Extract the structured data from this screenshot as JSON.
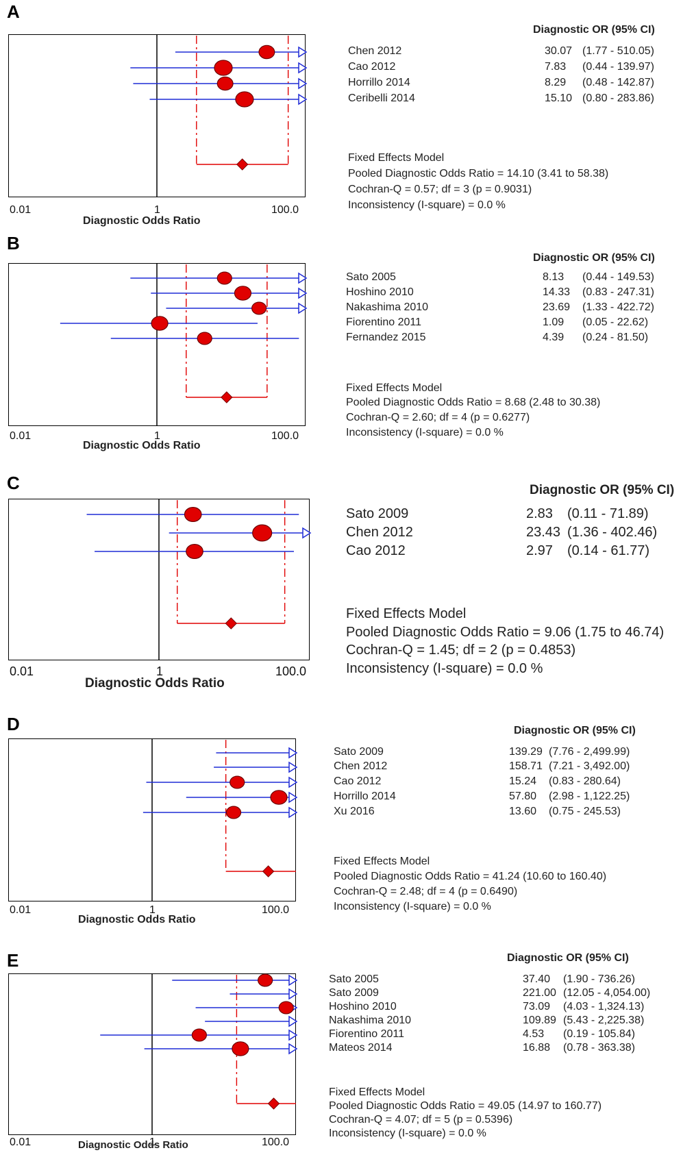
{
  "chart_data": [
    {
      "type": "forest",
      "panel": "A",
      "xlabel": "Diagnostic Odds Ratio",
      "x_scale": "log",
      "xlim": [
        0.01,
        100.0
      ],
      "x_ticks": [
        "0.01",
        "1",
        "100.0"
      ],
      "column_header": "Diagnostic OR (95% CI)",
      "studies": [
        {
          "name": "Chen 2012",
          "or": 30.07,
          "lower": 1.77,
          "upper": 510.05,
          "or_text": "30.07",
          "ci_text": "(1.77 - 510.05)"
        },
        {
          "name": "Cao 2012",
          "or": 7.83,
          "lower": 0.44,
          "upper": 139.97,
          "or_text": "7.83",
          "ci_text": "(0.44 - 139.97)"
        },
        {
          "name": "Horrillo 2014",
          "or": 8.29,
          "lower": 0.48,
          "upper": 142.87,
          "or_text": "8.29",
          "ci_text": "(0.48 - 142.87)"
        },
        {
          "name": "Ceribelli 2014",
          "or": 15.1,
          "lower": 0.8,
          "upper": 283.86,
          "or_text": "15.10",
          "ci_text": "(0.80 - 283.86)"
        }
      ],
      "pooled": {
        "or": 14.1,
        "lower": 3.41,
        "upper": 58.38
      },
      "summary_lines": [
        "Fixed Effects Model",
        "Pooled Diagnostic Odds Ratio = 14.10 (3.41 to 58.38)",
        "Cochran-Q = 0.57; df =  3 (p = 0.9031)",
        "Inconsistency (I-square) = 0.0 %"
      ]
    },
    {
      "type": "forest",
      "panel": "B",
      "xlabel": "Diagnostic Odds Ratio",
      "x_scale": "log",
      "xlim": [
        0.01,
        100.0
      ],
      "x_ticks": [
        "0.01",
        "1",
        "100.0"
      ],
      "column_header": "Diagnostic OR (95% CI)",
      "studies": [
        {
          "name": "Sato 2005",
          "or": 8.13,
          "lower": 0.44,
          "upper": 149.53,
          "or_text": "8.13",
          "ci_text": "(0.44 - 149.53)"
        },
        {
          "name": "Hoshino 2010",
          "or": 14.33,
          "lower": 0.83,
          "upper": 247.31,
          "or_text": "14.33",
          "ci_text": "(0.83 - 247.31)"
        },
        {
          "name": "Nakashima 2010",
          "or": 23.69,
          "lower": 1.33,
          "upper": 422.72,
          "or_text": "23.69",
          "ci_text": "(1.33 - 422.72)"
        },
        {
          "name": "Fiorentino 2011",
          "or": 1.09,
          "lower": 0.05,
          "upper": 22.62,
          "or_text": "1.09",
          "ci_text": "(0.05 - 22.62)"
        },
        {
          "name": "Fernandez 2015",
          "or": 4.39,
          "lower": 0.24,
          "upper": 81.5,
          "or_text": "4.39",
          "ci_text": "(0.24 - 81.50)"
        }
      ],
      "pooled": {
        "or": 8.68,
        "lower": 2.48,
        "upper": 30.38
      },
      "summary_lines": [
        "Fixed Effects Model",
        "Pooled Diagnostic Odds Ratio = 8.68 (2.48 to 30.38)",
        "Cochran-Q = 2.60; df =  4 (p = 0.6277)",
        "Inconsistency (I-square) = 0.0 %"
      ]
    },
    {
      "type": "forest",
      "panel": "C",
      "xlabel": "Diagnostic Odds Ratio",
      "x_scale": "log",
      "xlim": [
        0.01,
        100.0
      ],
      "x_ticks": [
        "0.01",
        "1",
        "100.0"
      ],
      "column_header": "Diagnostic OR (95% CI)",
      "studies": [
        {
          "name": "Sato 2009",
          "or": 2.83,
          "lower": 0.11,
          "upper": 71.89,
          "or_text": "2.83",
          "ci_text": "(0.11 - 71.89)"
        },
        {
          "name": "Chen 2012",
          "or": 23.43,
          "lower": 1.36,
          "upper": 402.46,
          "or_text": "23.43",
          "ci_text": "(1.36 - 402.46)"
        },
        {
          "name": "Cao 2012",
          "or": 2.97,
          "lower": 0.14,
          "upper": 61.77,
          "or_text": "2.97",
          "ci_text": "(0.14 - 61.77)"
        }
      ],
      "pooled": {
        "or": 9.06,
        "lower": 1.75,
        "upper": 46.74
      },
      "summary_lines": [
        "Fixed Effects Model",
        "Pooled Diagnostic Odds Ratio = 9.06 (1.75 to 46.74)",
        "Cochran-Q = 1.45; df =  2 (p = 0.4853)",
        "Inconsistency (I-square) = 0.0 %"
      ]
    },
    {
      "type": "forest",
      "panel": "D",
      "xlabel": "Diagnostic Odds Ratio",
      "x_scale": "log",
      "xlim": [
        0.01,
        100.0
      ],
      "x_ticks": [
        "0.01",
        "1",
        "100.0"
      ],
      "column_header": "Diagnostic OR (95% CI)",
      "studies": [
        {
          "name": "Sato 2009",
          "or": 139.29,
          "lower": 7.76,
          "upper": 2499.99,
          "or_text": "139.29",
          "ci_text": "(7.76 - 2,499.99)"
        },
        {
          "name": "Chen 2012",
          "or": 158.71,
          "lower": 7.21,
          "upper": 3492.0,
          "or_text": "158.71",
          "ci_text": "(7.21 - 3,492.00)"
        },
        {
          "name": "Cao 2012",
          "or": 15.24,
          "lower": 0.83,
          "upper": 280.64,
          "or_text": "15.24",
          "ci_text": "(0.83 - 280.64)"
        },
        {
          "name": "Horrillo 2014",
          "or": 57.8,
          "lower": 2.98,
          "upper": 1122.25,
          "or_text": "57.80",
          "ci_text": "(2.98 - 1,122.25)"
        },
        {
          "name": "Xu 2016",
          "or": 13.6,
          "lower": 0.75,
          "upper": 245.53,
          "or_text": "13.60",
          "ci_text": "(0.75 - 245.53)"
        }
      ],
      "pooled": {
        "or": 41.24,
        "lower": 10.6,
        "upper": 160.4
      },
      "summary_lines": [
        "Fixed Effects Model",
        "Pooled Diagnostic Odds Ratio = 41.24 (10.60 to 160.40)",
        "Cochran-Q = 2.48; df =  4 (p = 0.6490)",
        "Inconsistency (I-square) = 0.0 %"
      ]
    },
    {
      "type": "forest",
      "panel": "E",
      "xlabel": "Diagnostic Odds Ratio",
      "x_scale": "log",
      "xlim": [
        0.01,
        100.0
      ],
      "x_ticks": [
        "0.01",
        "1",
        "100.0"
      ],
      "column_header": "Diagnostic OR (95% CI)",
      "studies": [
        {
          "name": "Sato 2005",
          "or": 37.4,
          "lower": 1.9,
          "upper": 736.26,
          "or_text": "37.40",
          "ci_text": "(1.90 - 736.26)"
        },
        {
          "name": "Sato 2009",
          "or": 221.0,
          "lower": 12.05,
          "upper": 4054.0,
          "or_text": "221.00",
          "ci_text": "(12.05 - 4,054.00)"
        },
        {
          "name": "Hoshino 2010",
          "or": 73.09,
          "lower": 4.03,
          "upper": 1324.13,
          "or_text": "73.09",
          "ci_text": "(4.03 - 1,324.13)"
        },
        {
          "name": "Nakashima 2010",
          "or": 109.89,
          "lower": 5.43,
          "upper": 2225.38,
          "or_text": "109.89",
          "ci_text": "(5.43 - 2,225.38)"
        },
        {
          "name": "Fiorentino 2011",
          "or": 4.53,
          "lower": 0.19,
          "upper": 105.84,
          "or_text": "4.53",
          "ci_text": "(0.19 - 105.84)"
        },
        {
          "name": "Mateos 2014",
          "or": 16.88,
          "lower": 0.78,
          "upper": 363.38,
          "or_text": "16.88",
          "ci_text": "(0.78 - 363.38)"
        }
      ],
      "pooled": {
        "or": 49.05,
        "lower": 14.97,
        "upper": 160.77
      },
      "summary_lines": [
        "Fixed Effects Model",
        "Pooled Diagnostic Odds Ratio = 49.05 (14.97 to 160.77)",
        "Cochran-Q = 4.07; df =  5 (p = 0.5396)",
        "Inconsistency (I-square) = 0.0 %"
      ]
    }
  ],
  "colors": {
    "ci_line": "#1f2bd6",
    "marker_fill": "#e00000",
    "pooled_line": "#e00000",
    "frame": "#000000"
  }
}
